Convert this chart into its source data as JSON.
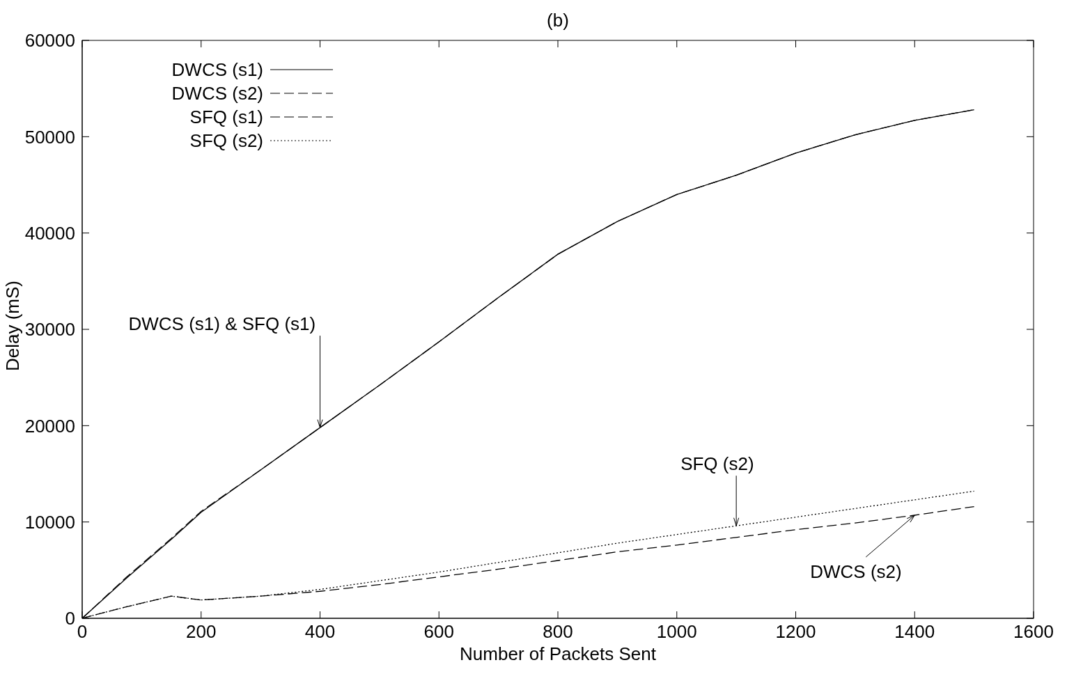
{
  "chart_data": {
    "type": "line",
    "title": "(b)",
    "xlabel": "Number of Packets Sent",
    "ylabel": "Delay (mS)",
    "x": [
      0,
      75,
      150,
      200,
      300,
      400,
      500,
      600,
      700,
      800,
      900,
      1000,
      1100,
      1200,
      1300,
      1400,
      1500
    ],
    "series": [
      {
        "name": "DWCS (s1)",
        "color": "#000000",
        "line_style": "solid",
        "values": [
          0,
          4200,
          8200,
          11000,
          15400,
          19800,
          24200,
          28700,
          33300,
          37800,
          41200,
          44000,
          46000,
          48300,
          50200,
          51700,
          52800
        ]
      },
      {
        "name": "DWCS (s2)",
        "color": "#000000",
        "line_style": "dashed",
        "values": [
          0,
          1200,
          2300,
          1900,
          2300,
          2800,
          3500,
          4300,
          5100,
          6000,
          6900,
          7600,
          8400,
          9200,
          9900,
          10700,
          11600
        ]
      },
      {
        "name": "SFQ (s1)",
        "color": "#000000",
        "line_style": "dashed",
        "values": [
          0,
          4300,
          8300,
          11100,
          15400,
          19800,
          24200,
          28700,
          33300,
          37800,
          41200,
          44000,
          46000,
          48300,
          50200,
          51700,
          52800
        ]
      },
      {
        "name": "SFQ (s2)",
        "color": "#000000",
        "line_style": "dotted",
        "values": [
          0,
          1200,
          2300,
          1900,
          2300,
          3000,
          3900,
          4800,
          5800,
          6800,
          7800,
          8700,
          9600,
          10500,
          11400,
          12300,
          13200
        ]
      }
    ],
    "xlim": [
      0,
      1600
    ],
    "xticks": [
      0,
      200,
      400,
      600,
      800,
      1000,
      1200,
      1400,
      1600
    ],
    "ylim": [
      0,
      60000
    ],
    "yticks": [
      0,
      10000,
      20000,
      30000,
      40000,
      50000,
      60000
    ],
    "grid": false,
    "legend": "top left",
    "marker": "none",
    "annotations": [
      {
        "text": "DWCS (s1) & SFQ (s1)",
        "x": 400,
        "y": 19800
      },
      {
        "text": "SFQ (s2)",
        "x": 1100,
        "y": 9600
      },
      {
        "text": "DWCS (s2)",
        "x": 1400,
        "y": 10700
      }
    ]
  }
}
